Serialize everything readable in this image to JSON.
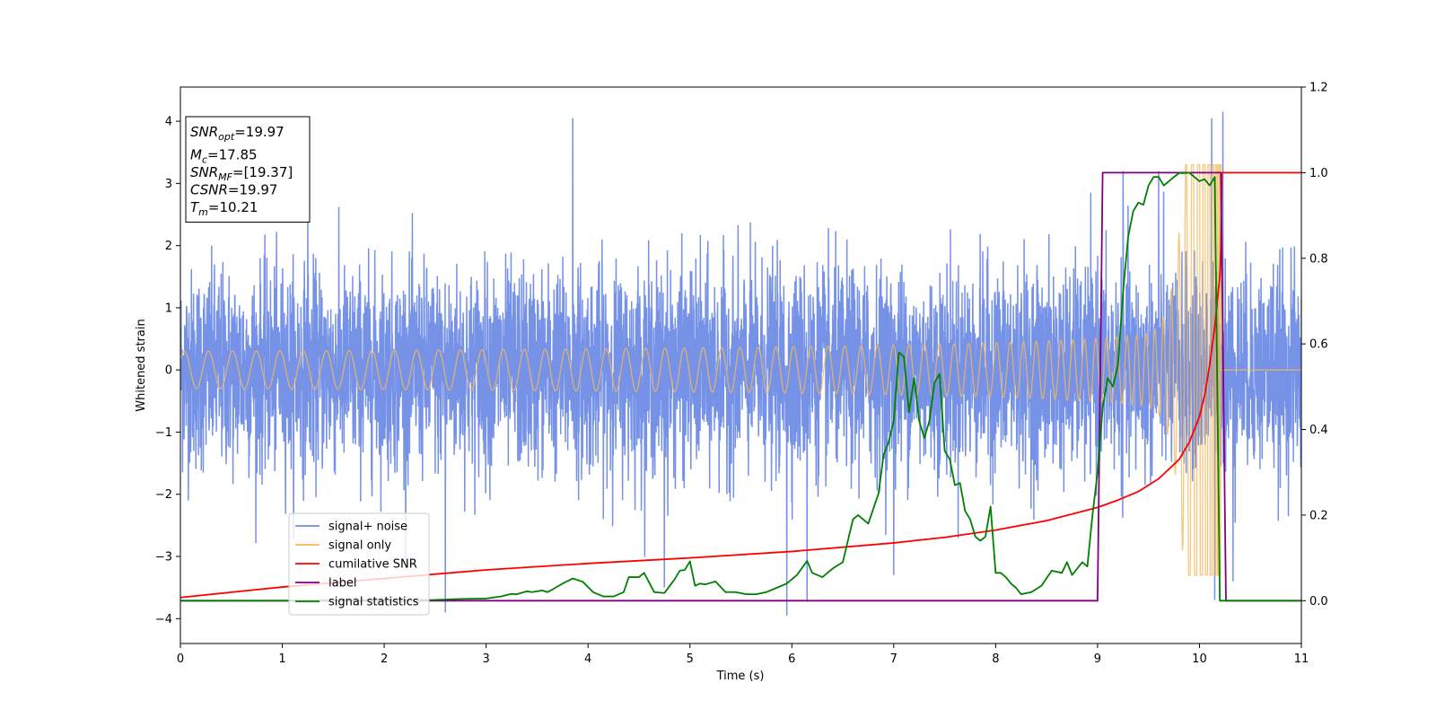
{
  "chart_data": {
    "type": "line",
    "xlabel": "Time (s)",
    "ylabel": "Whitened strain",
    "xlim": [
      0,
      11
    ],
    "ylim_left": [
      -4.4,
      4.55
    ],
    "ylim_right": [
      -0.1,
      1.2
    ],
    "x_ticks": [
      "0",
      "1",
      "2",
      "3",
      "4",
      "5",
      "6",
      "7",
      "8",
      "9",
      "10",
      "11"
    ],
    "y_left_ticks": [
      "4",
      "3",
      "2",
      "1",
      "0",
      "−1",
      "−2",
      "−3",
      "−4"
    ],
    "y_right_ticks": [
      "1.2",
      "1.0",
      "0.8",
      "0.6",
      "0.4",
      "0.2",
      "0.0"
    ],
    "grid": false,
    "legend_position": "lower-left",
    "annotation": {
      "lines": [
        {
          "base": "SNR",
          "sub": "opt",
          "value": "=19.97"
        },
        {
          "base": "M",
          "sub": "c",
          "value": "=17.85"
        },
        {
          "base": "SNR",
          "sub": "MF",
          "value": "=[19.37]"
        },
        {
          "base": "CSNR",
          "sub": "",
          "value": "=19.97"
        },
        {
          "base": "T",
          "sub": "m",
          "value": "=10.21"
        }
      ]
    },
    "series": [
      {
        "name": "signal+ noise",
        "color": "#6f8ce6",
        "axis": "left",
        "kind": "noise",
        "std": 0.8,
        "x_range": [
          0,
          11
        ],
        "extremes": [
          [
            3.85,
            4.05
          ],
          [
            10.23,
            4.15
          ],
          [
            10.12,
            4.05
          ],
          [
            2.6,
            -3.9
          ],
          [
            5.95,
            -3.95
          ],
          [
            6.15,
            -3.7
          ],
          [
            10.15,
            -3.7
          ],
          [
            10.33,
            -3.4
          ],
          [
            4.75,
            -3.5
          ],
          [
            7.0,
            -3.3
          ],
          [
            9.25,
            3.2
          ],
          [
            9.6,
            3.2
          ],
          [
            1.25,
            2.85
          ]
        ]
      },
      {
        "name": "signal only",
        "color": "#f5b85a",
        "axis": "left",
        "kind": "chirp",
        "merger_time": 10.21
      },
      {
        "name": "cumilative SNR",
        "color": "#ff0000",
        "axis": "right",
        "x": [
          0,
          1,
          2,
          3,
          4,
          5,
          6,
          7,
          7.5,
          8,
          8.5,
          9,
          9.2,
          9.4,
          9.6,
          9.8,
          9.9,
          10.0,
          10.05,
          10.1,
          10.15,
          10.2,
          10.21,
          10.22,
          11
        ],
        "y": [
          0.0075,
          0.032,
          0.052,
          0.072,
          0.087,
          0.1,
          0.115,
          0.135,
          0.148,
          0.165,
          0.187,
          0.218,
          0.235,
          0.255,
          0.285,
          0.33,
          0.37,
          0.43,
          0.48,
          0.55,
          0.64,
          0.76,
          0.82,
          1.0,
          1.0
        ]
      },
      {
        "name": "label",
        "color": "#800080",
        "axis": "right",
        "x": [
          0,
          9.0,
          9.05,
          10.21,
          10.26,
          11
        ],
        "y": [
          0,
          0,
          1,
          1,
          0,
          0
        ]
      },
      {
        "name": "signal statistics",
        "color": "#008000",
        "axis": "right",
        "x": [
          0,
          0.5,
          1,
          1.5,
          2,
          2.5,
          2.75,
          3.0,
          3.15,
          3.25,
          3.3,
          3.4,
          3.45,
          3.55,
          3.6,
          3.65,
          3.75,
          3.85,
          3.95,
          4.05,
          4.15,
          4.25,
          4.35,
          4.4,
          4.5,
          4.55,
          4.65,
          4.75,
          4.85,
          4.9,
          4.95,
          5.0,
          5.05,
          5.1,
          5.15,
          5.25,
          5.35,
          5.45,
          5.55,
          5.65,
          5.75,
          5.85,
          5.95,
          6.05,
          6.15,
          6.2,
          6.3,
          6.4,
          6.5,
          6.6,
          6.65,
          6.75,
          6.85,
          6.9,
          6.95,
          7.0,
          7.05,
          7.1,
          7.15,
          7.2,
          7.25,
          7.3,
          7.35,
          7.4,
          7.45,
          7.5,
          7.55,
          7.6,
          7.65,
          7.7,
          7.75,
          7.8,
          7.85,
          7.9,
          7.95,
          8.0,
          8.05,
          8.1,
          8.15,
          8.2,
          8.25,
          8.35,
          8.45,
          8.55,
          8.65,
          8.7,
          8.75,
          8.85,
          8.9,
          8.95,
          9.0,
          9.05,
          9.1,
          9.15,
          9.2,
          9.25,
          9.3,
          9.35,
          9.4,
          9.45,
          9.5,
          9.55,
          9.6,
          9.65,
          9.7,
          9.75,
          9.8,
          9.85,
          9.9,
          9.95,
          10.0,
          10.05,
          10.1,
          10.15,
          10.2,
          10.25,
          10.3,
          10.5,
          11
        ],
        "y": [
          0.0,
          0.0,
          0.0,
          0.001,
          0.001,
          0.002,
          0.004,
          0.005,
          0.01,
          0.016,
          0.015,
          0.022,
          0.02,
          0.024,
          0.02,
          0.026,
          0.04,
          0.052,
          0.044,
          0.02,
          0.01,
          0.01,
          0.02,
          0.055,
          0.055,
          0.065,
          0.02,
          0.018,
          0.05,
          0.07,
          0.072,
          0.092,
          0.035,
          0.04,
          0.038,
          0.045,
          0.02,
          0.02,
          0.015,
          0.015,
          0.02,
          0.03,
          0.04,
          0.06,
          0.093,
          0.065,
          0.055,
          0.075,
          0.09,
          0.19,
          0.2,
          0.18,
          0.25,
          0.34,
          0.37,
          0.42,
          0.58,
          0.57,
          0.44,
          0.52,
          0.42,
          0.38,
          0.42,
          0.51,
          0.53,
          0.35,
          0.33,
          0.27,
          0.275,
          0.21,
          0.19,
          0.15,
          0.14,
          0.15,
          0.22,
          0.065,
          0.065,
          0.055,
          0.04,
          0.03,
          0.015,
          0.02,
          0.035,
          0.07,
          0.065,
          0.09,
          0.06,
          0.09,
          0.08,
          0.2,
          0.3,
          0.45,
          0.52,
          0.5,
          0.55,
          0.72,
          0.85,
          0.91,
          0.93,
          0.925,
          0.97,
          0.99,
          0.99,
          0.97,
          0.98,
          0.99,
          0.999,
          0.999,
          1.0,
          0.99,
          0.98,
          0.985,
          0.97,
          0.99,
          0.0,
          0.0,
          0.0,
          0.0,
          0.0
        ]
      }
    ]
  }
}
